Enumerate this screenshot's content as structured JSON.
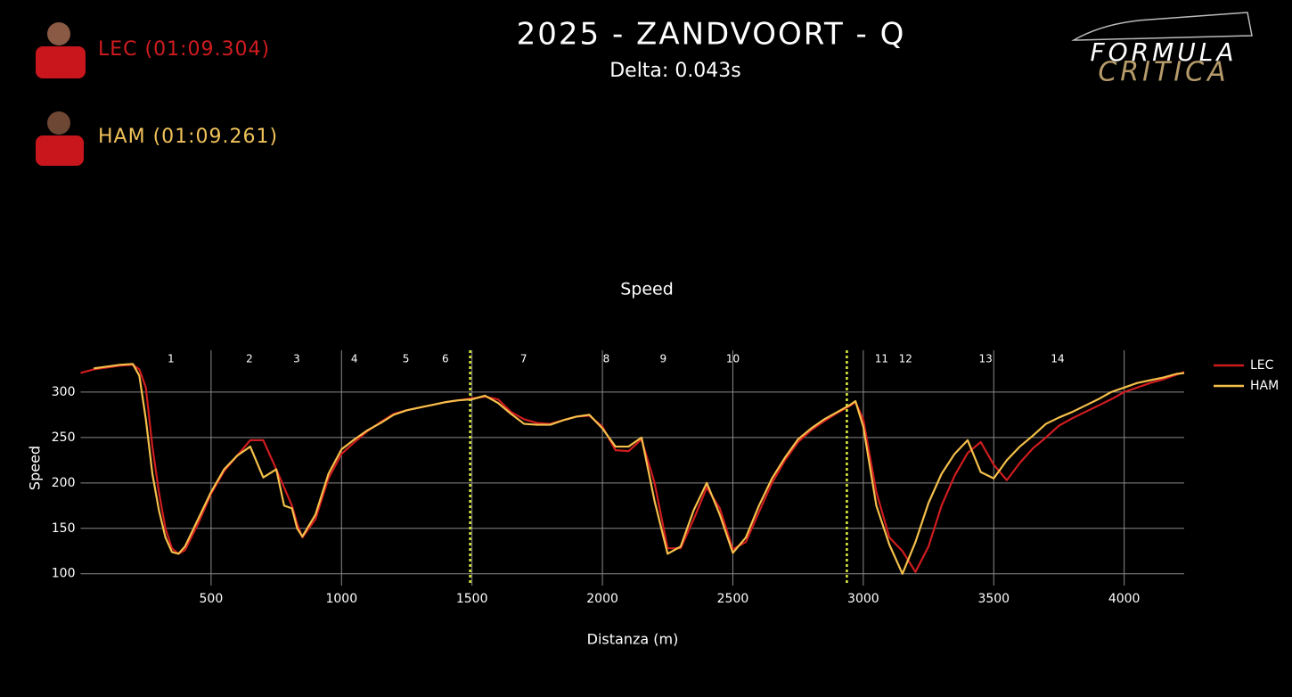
{
  "header": {
    "title": "2025 - ZANDVOORT - Q",
    "subtitle": "Delta: 0.043s",
    "drivers": [
      {
        "label": "LEC (01:09.304)",
        "color": "#d01c1f"
      },
      {
        "label": "HAM (01:09.261)",
        "color": "#f0c25a"
      }
    ],
    "logo": [
      "FORMULA",
      "CRITICA"
    ]
  },
  "chart_data": {
    "type": "line",
    "title": "Speed",
    "x_label": "Distanza (m)",
    "y_label": "Speed",
    "x": [
      0,
      50,
      100,
      150,
      200,
      225,
      250,
      275,
      300,
      325,
      350,
      375,
      400,
      450,
      500,
      550,
      600,
      650,
      700,
      750,
      780,
      810,
      830,
      850,
      900,
      950,
      1000,
      1050,
      1100,
      1150,
      1200,
      1250,
      1300,
      1350,
      1400,
      1450,
      1500,
      1550,
      1600,
      1650,
      1700,
      1750,
      1800,
      1850,
      1900,
      1950,
      2000,
      2050,
      2100,
      2150,
      2200,
      2250,
      2300,
      2350,
      2400,
      2450,
      2500,
      2550,
      2600,
      2650,
      2700,
      2750,
      2800,
      2850,
      2900,
      2950,
      2970,
      3000,
      3050,
      3100,
      3150,
      3200,
      3250,
      3300,
      3350,
      3400,
      3450,
      3500,
      3550,
      3600,
      3650,
      3700,
      3750,
      3800,
      3850,
      3900,
      3950,
      4000,
      4050,
      4100,
      4150,
      4200,
      4230
    ],
    "series": [
      {
        "name": "LEC",
        "color": "#d01c1f",
        "values": [
          321,
          325,
          327,
          329,
          330,
          325,
          305,
          240,
          190,
          150,
          128,
          122,
          126,
          155,
          188,
          213,
          230,
          247,
          247,
          215,
          195,
          175,
          155,
          140,
          160,
          205,
          232,
          245,
          257,
          267,
          276,
          280,
          283,
          286,
          289,
          291,
          293,
          295,
          292,
          278,
          270,
          266,
          265,
          269,
          273,
          274,
          262,
          236,
          235,
          248,
          200,
          128,
          128,
          160,
          195,
          172,
          127,
          135,
          168,
          200,
          225,
          245,
          258,
          268,
          277,
          285,
          289,
          270,
          190,
          140,
          125,
          102,
          130,
          175,
          208,
          233,
          245,
          220,
          203,
          222,
          238,
          250,
          263,
          271,
          278,
          285,
          292,
          300,
          305,
          310,
          314,
          319,
          322
        ]
      },
      {
        "name": "HAM",
        "color": "#f5c04a",
        "values": [
          null,
          326,
          328,
          330,
          331,
          318,
          270,
          210,
          170,
          140,
          124,
          122,
          130,
          160,
          190,
          215,
          230,
          240,
          206,
          215,
          175,
          172,
          150,
          141,
          165,
          210,
          237,
          248,
          258,
          266,
          275,
          280,
          283,
          286,
          289,
          291,
          292,
          296,
          288,
          276,
          265,
          264,
          264,
          269,
          273,
          275,
          260,
          240,
          240,
          250,
          180,
          122,
          130,
          170,
          200,
          165,
          123,
          140,
          175,
          205,
          228,
          248,
          260,
          270,
          278,
          286,
          290,
          262,
          175,
          132,
          100,
          135,
          178,
          210,
          232,
          247,
          212,
          205,
          225,
          240,
          252,
          265,
          272,
          278,
          285,
          292,
          300,
          305,
          310,
          313,
          316,
          320,
          321
        ]
      }
    ],
    "xlim": [
      0,
      4230
    ],
    "ylim": [
      87,
      346
    ],
    "xticks": [
      500,
      1000,
      1500,
      2000,
      2500,
      3000,
      3500,
      4000
    ],
    "yticks": [
      100,
      150,
      200,
      250,
      300
    ],
    "grid": true,
    "legend": "right",
    "corners": [
      {
        "text": "1",
        "x": 346
      },
      {
        "text": "2",
        "x": 647
      },
      {
        "text": "3",
        "x": 828
      },
      {
        "text": "4",
        "x": 1049
      },
      {
        "text": "5",
        "x": 1247
      },
      {
        "text": "6",
        "x": 1398
      },
      {
        "text": "7",
        "x": 1698
      },
      {
        "text": "8",
        "x": 2015
      },
      {
        "text": "9",
        "x": 2233
      },
      {
        "text": "10",
        "x": 2500
      },
      {
        "text": "11",
        "x": 3070
      },
      {
        "text": "12",
        "x": 3162
      },
      {
        "text": "13",
        "x": 3469
      },
      {
        "text": "14",
        "x": 3745
      }
    ],
    "sector_lines": [
      1493,
      2937
    ],
    "sector_color": "#dcef3c"
  }
}
